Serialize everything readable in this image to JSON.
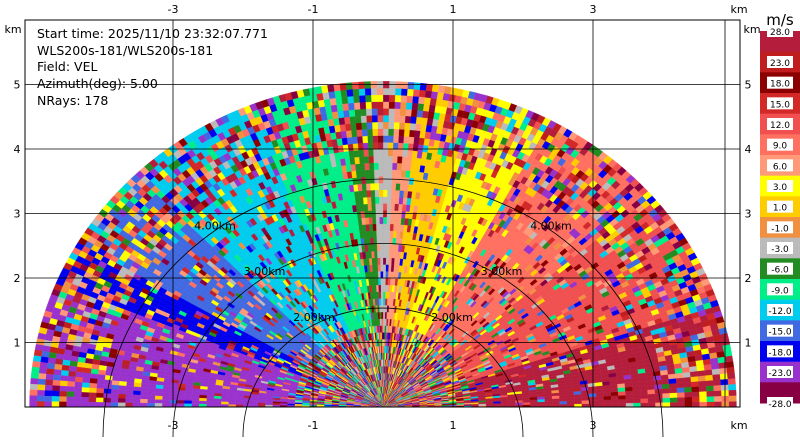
{
  "chart_data": {
    "type": "heatmap",
    "subtype": "radar-sector-scan",
    "info": {
      "start_time": "Start time: 2025/11/10 23:32:07.771",
      "station": "WLS200s-181/WLS200s-181",
      "field": "Field: VEL",
      "azimuth": "Azimuth(deg): 5.00",
      "nrays": "NRays: 178"
    },
    "x_unit": "km",
    "y_unit": "km",
    "x_ticks": [
      "-3",
      "-1",
      "1",
      "3"
    ],
    "x_tick_values": [
      -3,
      -1,
      1,
      3
    ],
    "y_ticks": [
      "1",
      "2",
      "3",
      "4",
      "5"
    ],
    "y_tick_values": [
      1,
      2,
      3,
      4,
      5
    ],
    "xlim": [
      -5.2,
      5.0
    ],
    "ylim": [
      0,
      5.5
    ],
    "grid": true,
    "range_rings": [
      "2.00km",
      "3.00km",
      "4.00km"
    ],
    "range_ring_values": [
      2,
      3,
      4
    ],
    "max_range_km": 5.05,
    "azimuth_span_deg": [
      0,
      180
    ],
    "colorbar": {
      "unit": "m/s",
      "labels": [
        "28.0",
        "23.0",
        "18.0",
        "15.0",
        "12.0",
        "9.0",
        "6.0",
        "3.0",
        "1.0",
        "-1.0",
        "-3.0",
        "-6.0",
        "-9.0",
        "-12.0",
        "-15.0",
        "-18.0",
        "-23.0",
        "-28.0"
      ],
      "colors": [
        "#b41e3c",
        "#c01e1e",
        "#8b0000",
        "#d22828",
        "#f05050",
        "#ff7060",
        "#ff9977",
        "#ffff00",
        "#ffcc00",
        "#f09040",
        "#bbbbbb",
        "#228b22",
        "#00ee88",
        "#00ccee",
        "#4169e1",
        "#0000ee",
        "#9932cc",
        "#880044"
      ]
    },
    "velocity_pattern": [
      {
        "az_from": 0,
        "az_to": 18,
        "value": 25,
        "color": "#b41e3c"
      },
      {
        "az_from": 18,
        "az_to": 40,
        "value": 15,
        "color": "#f05050"
      },
      {
        "az_from": 40,
        "az_to": 62,
        "value": 10,
        "color": "#ff7060"
      },
      {
        "az_from": 62,
        "az_to": 75,
        "value": 7,
        "color": "#ffff00"
      },
      {
        "az_from": 75,
        "az_to": 84,
        "value": 4,
        "color": "#ffcc00"
      },
      {
        "az_from": 84,
        "az_to": 88,
        "value": 2,
        "color": "#ff9977"
      },
      {
        "az_from": 88,
        "az_to": 92,
        "value": 0,
        "color": "#bbbbbb"
      },
      {
        "az_from": 92,
        "az_to": 97,
        "value": -2,
        "color": "#228b22"
      },
      {
        "az_from": 97,
        "az_to": 112,
        "value": -5,
        "color": "#00ee88"
      },
      {
        "az_from": 112,
        "az_to": 135,
        "value": -8,
        "color": "#00ccee"
      },
      {
        "az_from": 135,
        "az_to": 150,
        "value": -11,
        "color": "#4169e1"
      },
      {
        "az_from": 150,
        "az_to": 158,
        "value": -14,
        "color": "#0000ee"
      },
      {
        "az_from": 158,
        "az_to": 180,
        "value": -20,
        "color": "#9932cc"
      }
    ]
  }
}
